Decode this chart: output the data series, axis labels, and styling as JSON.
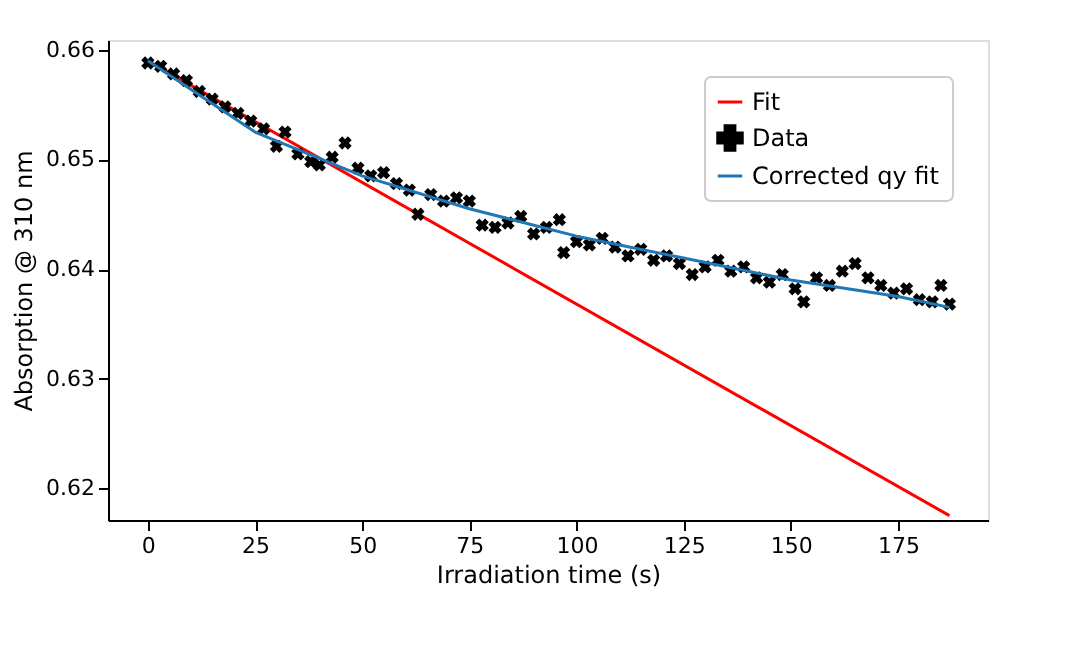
{
  "chart_data": {
    "type": "scatter",
    "xlabel": "Irradiation time (s)",
    "ylabel": "Absorption  @ 310 nm",
    "xlim": [
      -9.3,
      196
    ],
    "ylim": [
      0.6171,
      0.6609
    ],
    "xticks": [
      0,
      25,
      50,
      75,
      100,
      125,
      150,
      175
    ],
    "yticks": [
      0.62,
      0.63,
      0.64,
      0.65,
      0.66
    ],
    "legend": "top right",
    "grid": false,
    "series": [
      {
        "name": "Fit",
        "type": "line",
        "color": "#ff0000",
        "x": [
          0,
          187
        ],
        "values": [
          0.659,
          0.6175
        ]
      },
      {
        "name": "Data",
        "marker": "cross",
        "color": "#000000",
        "x": [
          0,
          3,
          6,
          9,
          12,
          15,
          18,
          21,
          24,
          27,
          30,
          32,
          35,
          38,
          40,
          43,
          46,
          49,
          52,
          55,
          58,
          61,
          63,
          66,
          69,
          72,
          75,
          78,
          81,
          84,
          87,
          90,
          93,
          96,
          97,
          100,
          103,
          106,
          109,
          112,
          115,
          118,
          121,
          124,
          127,
          130,
          133,
          136,
          139,
          142,
          145,
          148,
          151,
          153,
          156,
          159,
          162,
          165,
          168,
          171,
          174,
          177,
          180,
          183,
          185,
          187
        ],
        "values": [
          0.6588,
          0.6585,
          0.6578,
          0.6572,
          0.6562,
          0.6555,
          0.6548,
          0.6542,
          0.6535,
          0.6528,
          0.6512,
          0.6525,
          0.6505,
          0.6498,
          0.6495,
          0.6502,
          0.6515,
          0.6492,
          0.6485,
          0.6488,
          0.6478,
          0.6472,
          0.645,
          0.6468,
          0.6462,
          0.6465,
          0.6462,
          0.644,
          0.6438,
          0.6442,
          0.6448,
          0.6432,
          0.6438,
          0.6445,
          0.6415,
          0.6425,
          0.6422,
          0.6428,
          0.642,
          0.6412,
          0.6418,
          0.6408,
          0.6412,
          0.6405,
          0.6395,
          0.6402,
          0.6408,
          0.6398,
          0.6402,
          0.6392,
          0.6388,
          0.6395,
          0.6382,
          0.637,
          0.6392,
          0.6385,
          0.6398,
          0.6405,
          0.6392,
          0.6385,
          0.6378,
          0.6382,
          0.6372,
          0.637,
          0.6385,
          0.6368
        ]
      },
      {
        "name": "Corrected qy fit",
        "type": "line",
        "color": "#1f77b4",
        "x": [
          0,
          25,
          50,
          75,
          100,
          125,
          150,
          175,
          187
        ],
        "values": [
          0.659,
          0.6525,
          0.6485,
          0.6455,
          0.643,
          0.641,
          0.639,
          0.6375,
          0.6365
        ]
      }
    ]
  }
}
